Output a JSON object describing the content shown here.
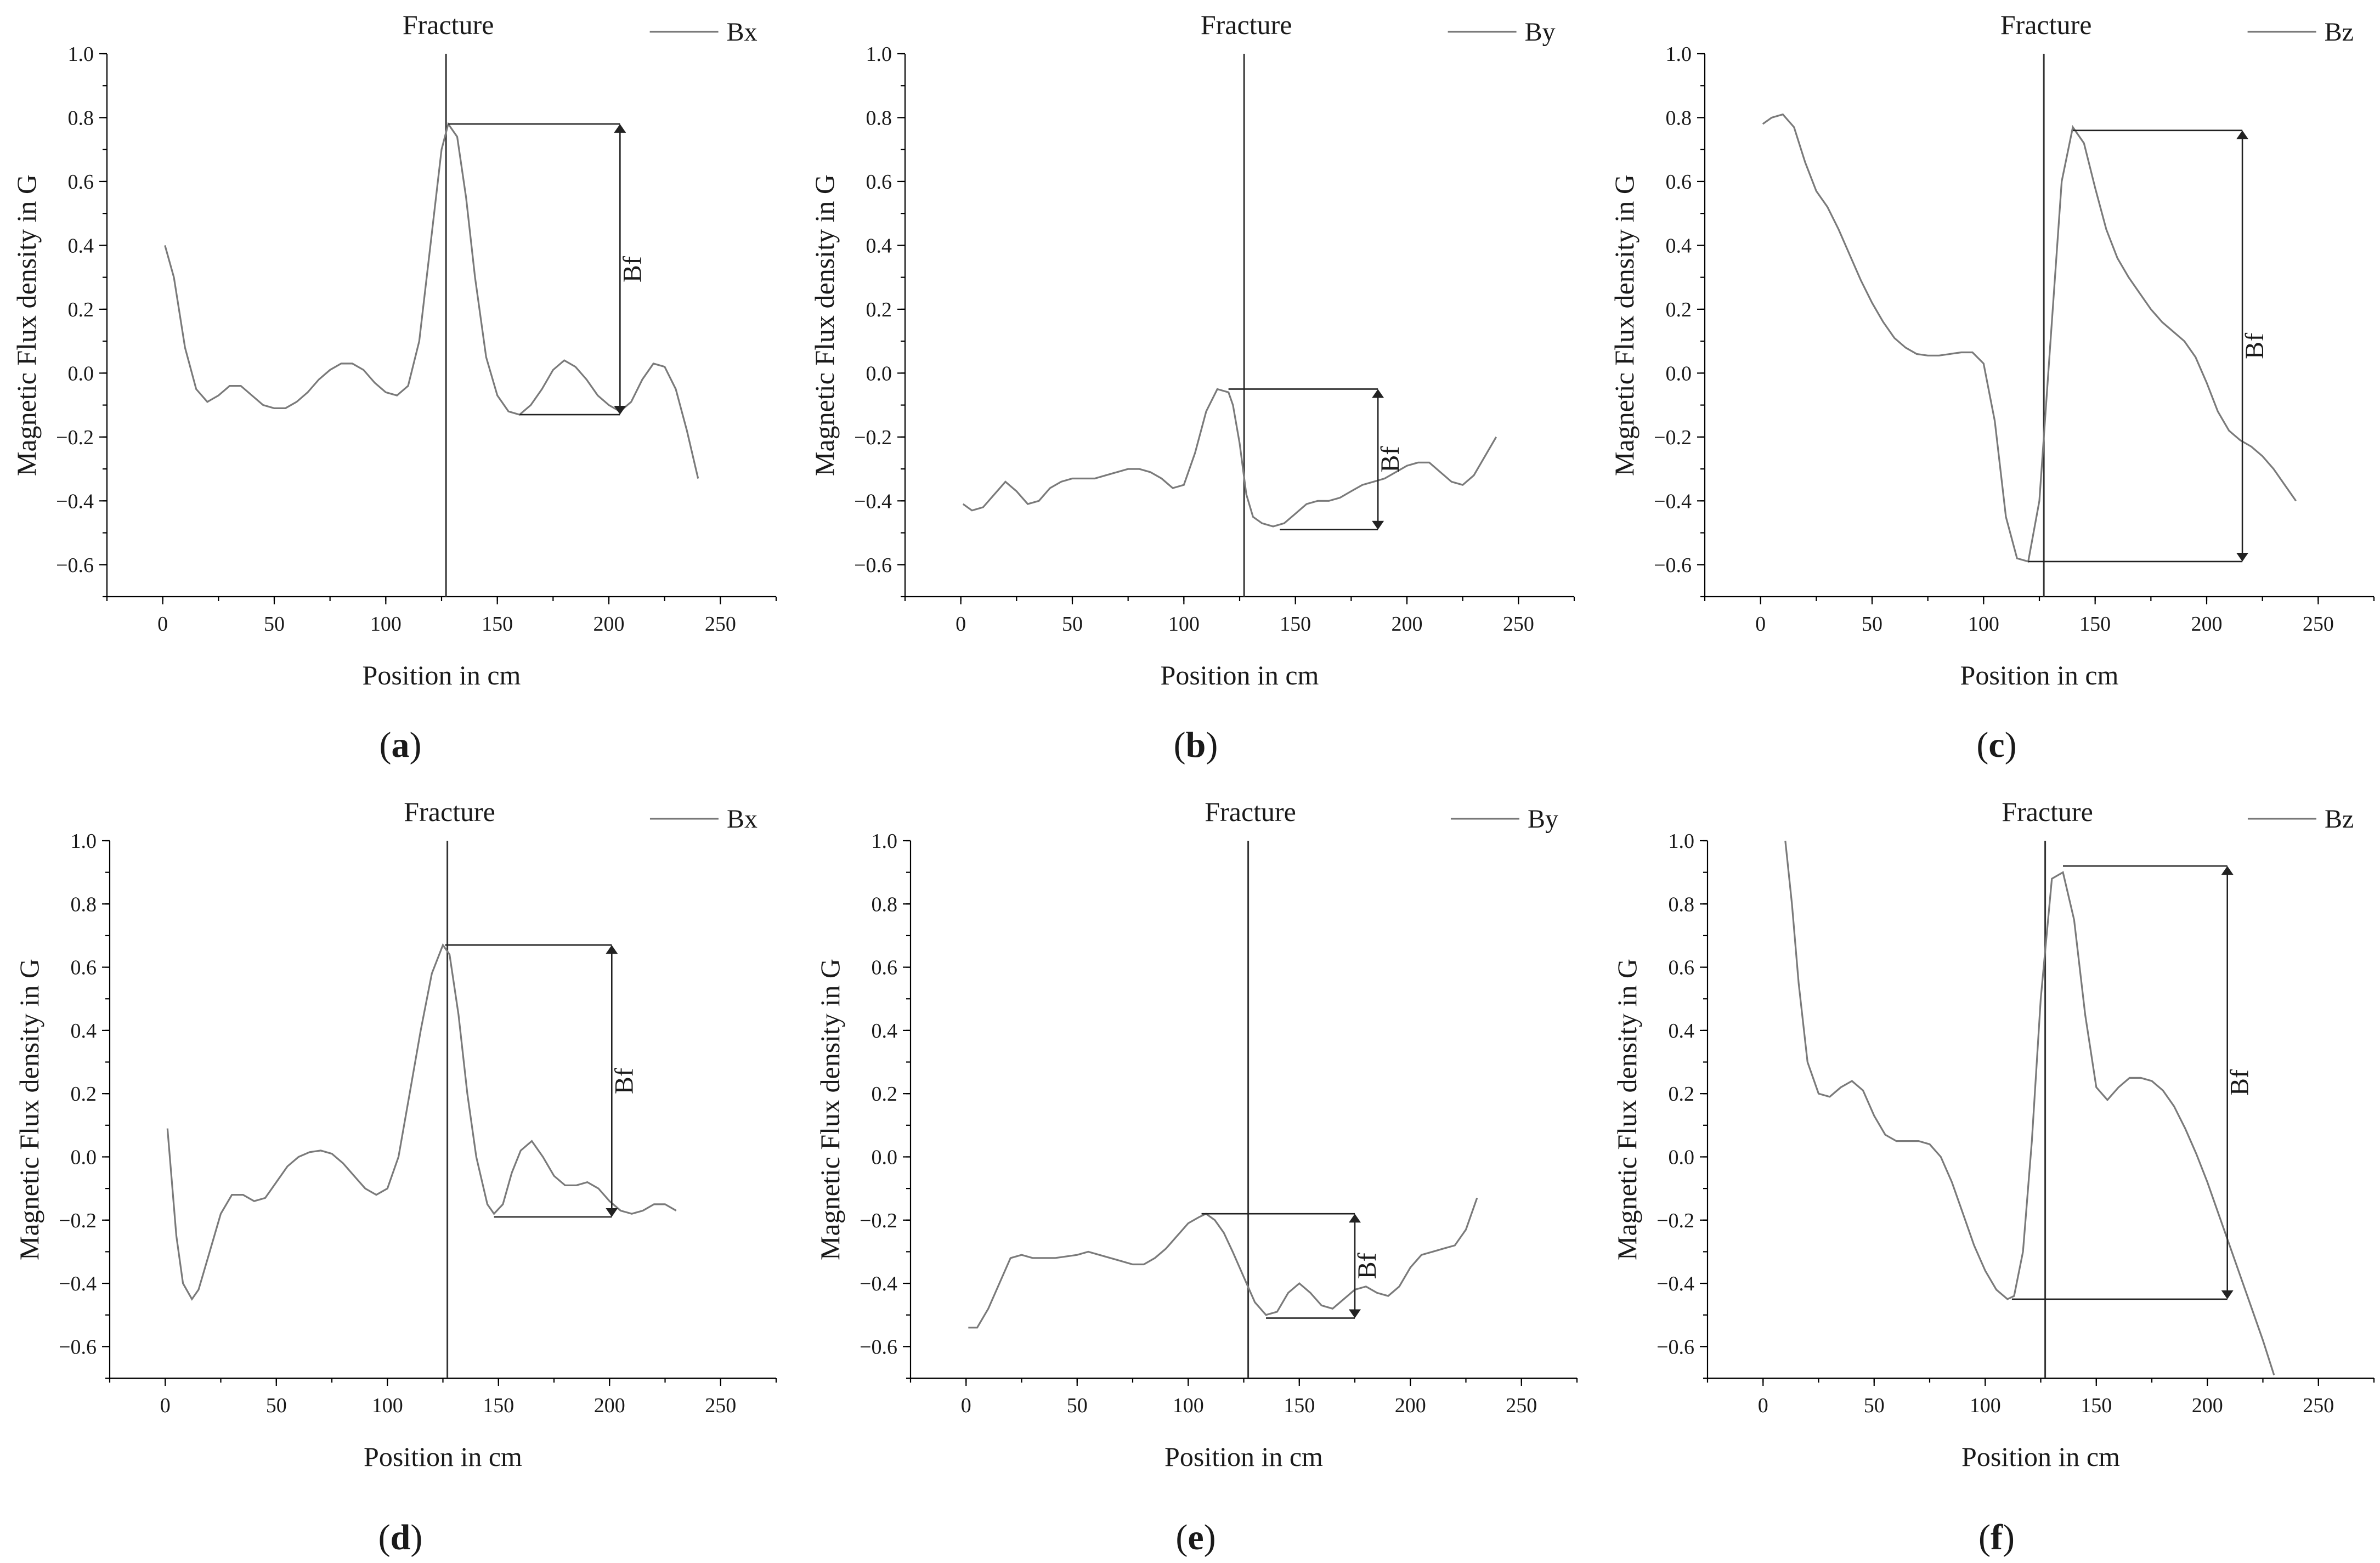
{
  "figure": {
    "panel_labels": [
      "a",
      "b",
      "c",
      "d",
      "e",
      "f"
    ]
  },
  "chart_data": [
    {
      "type": "line",
      "panel": "a",
      "series": [
        {
          "name": "Bx",
          "x": [
            1,
            5,
            10,
            15,
            20,
            25,
            30,
            35,
            40,
            45,
            50,
            55,
            60,
            65,
            70,
            75,
            80,
            85,
            90,
            95,
            100,
            105,
            110,
            115,
            120,
            125,
            128,
            132,
            136,
            140,
            145,
            150,
            155,
            160,
            165,
            170,
            175,
            180,
            185,
            190,
            195,
            200,
            205,
            210,
            215,
            220,
            225,
            230,
            235,
            240
          ],
          "values": [
            0.4,
            0.3,
            0.08,
            -0.05,
            -0.09,
            -0.07,
            -0.04,
            -0.04,
            -0.07,
            -0.1,
            -0.11,
            -0.11,
            -0.09,
            -0.06,
            -0.02,
            0.01,
            0.03,
            0.03,
            0.01,
            -0.03,
            -0.06,
            -0.07,
            -0.04,
            0.1,
            0.4,
            0.7,
            0.78,
            0.74,
            0.55,
            0.3,
            0.05,
            -0.07,
            -0.12,
            -0.13,
            -0.1,
            -0.05,
            0.01,
            0.04,
            0.02,
            -0.02,
            -0.07,
            -0.1,
            -0.12,
            -0.09,
            -0.02,
            0.03,
            0.02,
            -0.05,
            -0.18,
            -0.33
          ]
        }
      ],
      "fracture_x": 127,
      "bf": {
        "x_start": 128,
        "x_arrow": 205,
        "x_low_start": 160,
        "y_top": 0.78,
        "y_bottom": -0.13,
        "label": "Bf"
      },
      "title": "Fracture",
      "xlabel": "Position in cm",
      "ylabel": "Magnetic Flux density in G",
      "xlim": [
        -25,
        275
      ],
      "ylim": [
        -0.7,
        1.0
      ],
      "xticks": [
        0,
        50,
        100,
        150,
        200,
        250
      ],
      "yticks": [
        1.0,
        0.8,
        0.6,
        0.4,
        0.2,
        0.0,
        -0.2,
        -0.4,
        -0.6
      ],
      "ytick_labels": [
        "1.0",
        "0.8",
        "0.6",
        "0.4",
        "0.2",
        "0.0",
        "−0.2",
        "−0.4",
        "−0.6"
      ]
    },
    {
      "type": "line",
      "panel": "b",
      "series": [
        {
          "name": "By",
          "x": [
            1,
            5,
            10,
            15,
            20,
            25,
            30,
            35,
            40,
            45,
            50,
            55,
            60,
            65,
            70,
            75,
            80,
            85,
            90,
            95,
            100,
            105,
            110,
            115,
            120,
            122,
            125,
            128,
            131,
            135,
            140,
            145,
            150,
            155,
            160,
            165,
            170,
            175,
            180,
            185,
            190,
            195,
            200,
            205,
            210,
            215,
            220,
            225,
            230,
            235,
            240
          ],
          "values": [
            -0.41,
            -0.43,
            -0.42,
            -0.38,
            -0.34,
            -0.37,
            -0.41,
            -0.4,
            -0.36,
            -0.34,
            -0.33,
            -0.33,
            -0.33,
            -0.32,
            -0.31,
            -0.3,
            -0.3,
            -0.31,
            -0.33,
            -0.36,
            -0.35,
            -0.25,
            -0.12,
            -0.05,
            -0.06,
            -0.1,
            -0.22,
            -0.38,
            -0.45,
            -0.47,
            -0.48,
            -0.47,
            -0.44,
            -0.41,
            -0.4,
            -0.4,
            -0.39,
            -0.37,
            -0.35,
            -0.34,
            -0.33,
            -0.31,
            -0.29,
            -0.28,
            -0.28,
            -0.31,
            -0.34,
            -0.35,
            -0.32,
            -0.26,
            -0.2
          ]
        }
      ],
      "fracture_x": 127,
      "bf": {
        "x_start": 120,
        "x_arrow": 187,
        "x_low_start": 143,
        "y_top": -0.05,
        "y_bottom": -0.49,
        "label": "Bf"
      },
      "title": "Fracture",
      "xlabel": "Position in cm",
      "ylabel": "Magnetic Flux density in G",
      "xlim": [
        -25,
        275
      ],
      "ylim": [
        -0.7,
        1.0
      ],
      "xticks": [
        0,
        50,
        100,
        150,
        200,
        250
      ],
      "yticks": [
        1.0,
        0.8,
        0.6,
        0.4,
        0.2,
        0.0,
        -0.2,
        -0.4,
        -0.6
      ],
      "ytick_labels": [
        "1.0",
        "0.8",
        "0.6",
        "0.4",
        "0.2",
        "0.0",
        "−0.2",
        "−0.4",
        "−0.6"
      ]
    },
    {
      "type": "line",
      "panel": "c",
      "series": [
        {
          "name": "Bz",
          "x": [
            1,
            5,
            10,
            15,
            20,
            25,
            30,
            35,
            40,
            45,
            50,
            55,
            60,
            65,
            70,
            75,
            80,
            85,
            90,
            95,
            100,
            105,
            110,
            115,
            120,
            125,
            130,
            135,
            140,
            145,
            150,
            155,
            160,
            165,
            170,
            175,
            180,
            185,
            190,
            195,
            200,
            205,
            210,
            215,
            220,
            225,
            230,
            235,
            240
          ],
          "values": [
            0.78,
            0.8,
            0.81,
            0.77,
            0.66,
            0.57,
            0.52,
            0.45,
            0.37,
            0.29,
            0.22,
            0.16,
            0.11,
            0.08,
            0.06,
            0.055,
            0.055,
            0.06,
            0.065,
            0.065,
            0.03,
            -0.15,
            -0.45,
            -0.58,
            -0.59,
            -0.4,
            0.1,
            0.6,
            0.77,
            0.72,
            0.58,
            0.45,
            0.36,
            0.3,
            0.25,
            0.2,
            0.16,
            0.13,
            0.1,
            0.05,
            -0.03,
            -0.12,
            -0.18,
            -0.21,
            -0.23,
            -0.26,
            -0.3,
            -0.35,
            -0.4
          ]
        }
      ],
      "fracture_x": 127,
      "bf": {
        "x_start": 140,
        "x_arrow": 216,
        "x_low_start": 120,
        "y_top": 0.76,
        "y_bottom": -0.59,
        "label": "Bf"
      },
      "title": "Fracture",
      "xlabel": "Position in cm",
      "ylabel": "Magnetic Flux density in G",
      "xlim": [
        -25,
        275
      ],
      "ylim": [
        -0.7,
        1.0
      ],
      "xticks": [
        0,
        50,
        100,
        150,
        200,
        250
      ],
      "yticks": [
        1.0,
        0.8,
        0.6,
        0.4,
        0.2,
        0.0,
        -0.2,
        -0.4,
        -0.6
      ],
      "ytick_labels": [
        "1.0",
        "0.8",
        "0.6",
        "0.4",
        "0.2",
        "0.0",
        "−0.2",
        "−0.4",
        "−0.6"
      ]
    },
    {
      "type": "line",
      "panel": "d",
      "series": [
        {
          "name": "Bx",
          "x": [
            1,
            5,
            8,
            12,
            15,
            20,
            25,
            30,
            35,
            40,
            45,
            50,
            55,
            60,
            65,
            70,
            75,
            80,
            85,
            90,
            95,
            100,
            105,
            110,
            115,
            120,
            125,
            128,
            132,
            136,
            140,
            145,
            148,
            152,
            156,
            160,
            165,
            170,
            175,
            180,
            185,
            190,
            195,
            200,
            205,
            210,
            215,
            220,
            225,
            230
          ],
          "values": [
            0.09,
            -0.25,
            -0.4,
            -0.45,
            -0.42,
            -0.3,
            -0.18,
            -0.12,
            -0.12,
            -0.14,
            -0.13,
            -0.08,
            -0.03,
            0.0,
            0.015,
            0.02,
            0.01,
            -0.02,
            -0.06,
            -0.1,
            -0.12,
            -0.1,
            0.0,
            0.2,
            0.4,
            0.58,
            0.67,
            0.64,
            0.45,
            0.2,
            0.0,
            -0.15,
            -0.18,
            -0.15,
            -0.05,
            0.02,
            0.05,
            0.0,
            -0.06,
            -0.09,
            -0.09,
            -0.08,
            -0.1,
            -0.14,
            -0.17,
            -0.18,
            -0.17,
            -0.15,
            -0.15,
            -0.17
          ]
        }
      ],
      "fracture_x": 127,
      "bf": {
        "x_start": 126,
        "x_arrow": 201,
        "x_low_start": 148,
        "y_top": 0.67,
        "y_bottom": -0.19,
        "label": "Bf"
      },
      "title": "Fracture",
      "xlabel": "Position in cm",
      "ylabel": "Magnetic Flux density in G",
      "xlim": [
        -25,
        275
      ],
      "ylim": [
        -0.7,
        1.0
      ],
      "xticks": [
        0,
        50,
        100,
        150,
        200,
        250
      ],
      "yticks": [
        1.0,
        0.8,
        0.6,
        0.4,
        0.2,
        0.0,
        -0.2,
        -0.4,
        -0.6
      ],
      "ytick_labels": [
        "1.0",
        "0.8",
        "0.6",
        "0.4",
        "0.2",
        "0.0",
        "−0.2",
        "−0.4",
        "−0.6"
      ]
    },
    {
      "type": "line",
      "panel": "e",
      "series": [
        {
          "name": "By",
          "x": [
            1,
            5,
            10,
            15,
            20,
            25,
            30,
            35,
            40,
            45,
            50,
            55,
            60,
            65,
            70,
            75,
            80,
            85,
            90,
            95,
            100,
            105,
            108,
            112,
            116,
            120,
            125,
            130,
            135,
            140,
            145,
            150,
            155,
            160,
            165,
            170,
            175,
            180,
            185,
            190,
            195,
            200,
            205,
            210,
            215,
            220,
            225,
            230
          ],
          "values": [
            -0.54,
            -0.54,
            -0.48,
            -0.4,
            -0.32,
            -0.31,
            -0.32,
            -0.32,
            -0.32,
            -0.315,
            -0.31,
            -0.3,
            -0.31,
            -0.32,
            -0.33,
            -0.34,
            -0.34,
            -0.32,
            -0.29,
            -0.25,
            -0.21,
            -0.19,
            -0.18,
            -0.2,
            -0.24,
            -0.3,
            -0.38,
            -0.46,
            -0.5,
            -0.49,
            -0.43,
            -0.4,
            -0.43,
            -0.47,
            -0.48,
            -0.45,
            -0.42,
            -0.41,
            -0.43,
            -0.44,
            -0.41,
            -0.35,
            -0.31,
            -0.3,
            -0.29,
            -0.28,
            -0.23,
            -0.13
          ]
        }
      ],
      "fracture_x": 127,
      "bf": {
        "x_start": 106,
        "x_arrow": 175,
        "x_low_start": 135,
        "y_top": -0.18,
        "y_bottom": -0.51,
        "label": "Bf"
      },
      "title": "Fracture",
      "xlabel": "Position in cm",
      "ylabel": "Magnetic Flux density in G",
      "xlim": [
        -25,
        275
      ],
      "ylim": [
        -0.7,
        1.0
      ],
      "xticks": [
        0,
        50,
        100,
        150,
        200,
        250
      ],
      "yticks": [
        1.0,
        0.8,
        0.6,
        0.4,
        0.2,
        0.0,
        -0.2,
        -0.4,
        -0.6
      ],
      "ytick_labels": [
        "1.0",
        "0.8",
        "0.6",
        "0.4",
        "0.2",
        "0.0",
        "−0.2",
        "−0.4",
        "−0.6"
      ]
    },
    {
      "type": "line",
      "panel": "f",
      "series": [
        {
          "name": "Bz",
          "x": [
            10,
            13,
            16,
            20,
            25,
            30,
            35,
            40,
            45,
            50,
            55,
            60,
            65,
            70,
            75,
            80,
            85,
            90,
            95,
            100,
            105,
            110,
            113,
            117,
            121,
            125,
            130,
            135,
            140,
            145,
            150,
            155,
            160,
            165,
            170,
            175,
            180,
            185,
            190,
            195,
            200,
            205,
            210,
            215,
            220,
            225,
            230
          ],
          "values": [
            1.0,
            0.8,
            0.55,
            0.3,
            0.2,
            0.19,
            0.22,
            0.24,
            0.21,
            0.13,
            0.07,
            0.05,
            0.05,
            0.05,
            0.04,
            0.0,
            -0.08,
            -0.18,
            -0.28,
            -0.36,
            -0.42,
            -0.45,
            -0.44,
            -0.3,
            0.05,
            0.5,
            0.88,
            0.9,
            0.75,
            0.45,
            0.22,
            0.18,
            0.22,
            0.25,
            0.25,
            0.24,
            0.21,
            0.16,
            0.09,
            0.01,
            -0.08,
            -0.18,
            -0.28,
            -0.38,
            -0.48,
            -0.58,
            -0.69
          ]
        }
      ],
      "fracture_x": 127,
      "bf": {
        "x_start": 135,
        "x_arrow": 209,
        "x_low_start": 112,
        "y_top": 0.92,
        "y_bottom": -0.45,
        "label": "Bf"
      },
      "title": "Fracture",
      "xlabel": "Position in cm",
      "ylabel": "Magnetic Flux density in G",
      "xlim": [
        -25,
        275
      ],
      "ylim": [
        -0.7,
        1.0
      ],
      "xticks": [
        0,
        50,
        100,
        150,
        200,
        250
      ],
      "yticks": [
        1.0,
        0.8,
        0.6,
        0.4,
        0.2,
        0.0,
        -0.2,
        -0.4,
        -0.6
      ],
      "ytick_labels": [
        "1.0",
        "0.8",
        "0.6",
        "0.4",
        "0.2",
        "0.0",
        "−0.2",
        "−0.4",
        "−0.6"
      ]
    }
  ]
}
